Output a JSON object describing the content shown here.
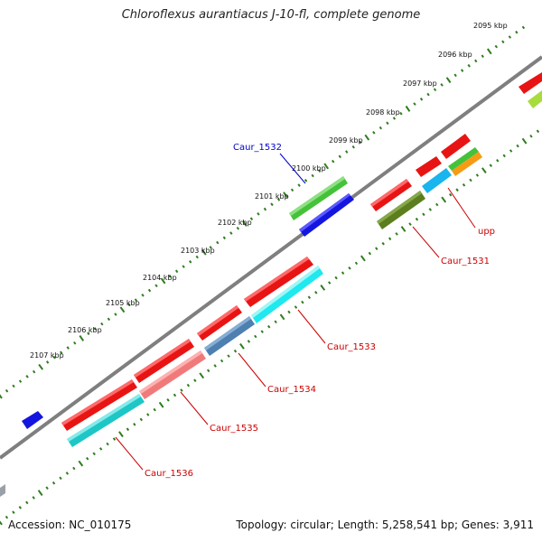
{
  "title": "Chloroflexus aurantiacus J-10-fl, complete genome",
  "footer": {
    "accession": "Accession: NC_010175",
    "summary": "Topology: circular; Length: 5,258,541 bp; Genes: 3,911"
  },
  "ruler_ticks": [
    "2095 kbp",
    "2096 kbp",
    "2097 kbp",
    "2098 kbp",
    "2099 kbp",
    "2100 kbp",
    "2101 kbp",
    "2102 kbp",
    "2103 kbp",
    "2104 kbp",
    "2105 kbp",
    "2106 kbp",
    "2107 kbp"
  ],
  "gene_labels": [
    {
      "id": "caur1532",
      "text": "Caur_1532",
      "color": "#0000cc"
    },
    {
      "id": "upp",
      "text": "upp",
      "color": "#cc0000"
    },
    {
      "id": "caur1531",
      "text": "Caur_1531",
      "color": "#cc0000"
    },
    {
      "id": "caur1533",
      "text": "Caur_1533",
      "color": "#cc0000"
    },
    {
      "id": "caur1534",
      "text": "Caur_1534",
      "color": "#cc0000"
    },
    {
      "id": "caur1535",
      "text": "Caur_1535",
      "color": "#cc0000"
    },
    {
      "id": "caur1536",
      "text": "Caur_1536",
      "color": "#cc0000"
    }
  ],
  "colors": {
    "backbone": "#8a8a8a",
    "ruler_dots": "#2e7d1e",
    "red": "#e81414",
    "green": "#44c23a",
    "blue": "#1515e0",
    "cyan": "#1fe8ee",
    "teal": "#1fc6c6",
    "steel": "#4d7fb0",
    "salmon": "#f07a7a",
    "olive": "#5c7e1e",
    "orange": "#f59b14",
    "sky": "#18b5ee",
    "lime": "#a8dc3c"
  }
}
